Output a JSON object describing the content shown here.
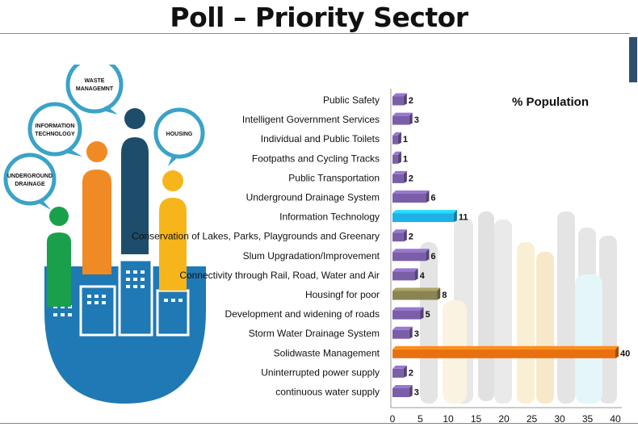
{
  "title": "Poll – Priority Sector",
  "illustration": {
    "bubbles": [
      {
        "lines": [
          "WASTE",
          "MANAGEMNT"
        ],
        "color": "#1d4d6b"
      },
      {
        "lines": [
          "INFORMATION",
          "TECHNOLOGY"
        ],
        "color": "#f08a24"
      },
      {
        "lines": [
          "HOUSING"
        ],
        "color": "#f7b51c"
      },
      {
        "lines": [
          "UNDERGROUND",
          "DRAINAGE"
        ],
        "color": "#1aa04a"
      }
    ]
  },
  "chart_data": {
    "type": "bar",
    "orientation": "horizontal",
    "legend": "% Population",
    "legend_position": "top-right",
    "xlim": [
      0,
      40
    ],
    "xticks": [
      0,
      5,
      10,
      15,
      20,
      25,
      30,
      35,
      40
    ],
    "grid": false,
    "categories": [
      "Public Safety",
      "Intelligent Government Services",
      "Individual and Public Toilets",
      "Footpaths and Cycling Tracks",
      "Public Transportation",
      "Underground Drainage System",
      "Information Technology",
      "Conservation of Lakes, Parks, Playgrounds and Greenary",
      "Slum Upgradation/Improvement",
      "Connectivity through Rail, Road, Water and Air",
      "Housingf for poor",
      "Development and widening of roads",
      "Storm Water Drainage System",
      "Solidwaste Management",
      "Uninterrupted power supply",
      "continuous water supply"
    ],
    "values": [
      2,
      3,
      1,
      1,
      2,
      6,
      11,
      2,
      6,
      4,
      8,
      5,
      3,
      40,
      2,
      3
    ],
    "value_labels": [
      "2",
      "3",
      "1",
      "1",
      "2",
      "6",
      "11",
      "2",
      "6",
      "4",
      "8",
      "5",
      "3",
      "40",
      "2",
      "3"
    ],
    "colors": [
      "#7a5fa8",
      "#7a5fa8",
      "#7a5fa8",
      "#7a5fa8",
      "#7a5fa8",
      "#7a5fa8",
      "#1fb0e6",
      "#7a5fa8",
      "#7a5fa8",
      "#7a5fa8",
      "#8a8452",
      "#7a5fa8",
      "#7a5fa8",
      "#e8700f",
      "#7a5fa8",
      "#7a5fa8"
    ]
  }
}
